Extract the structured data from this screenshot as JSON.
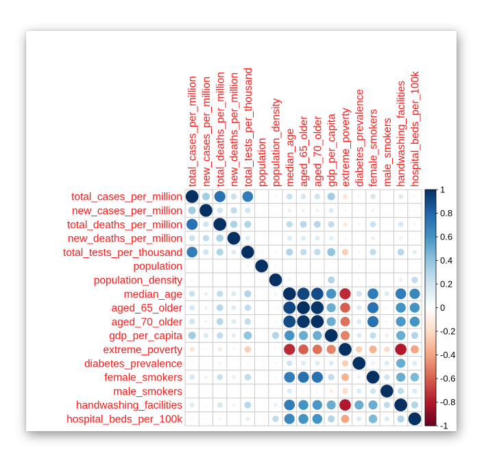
{
  "colors": {
    "label": "#ff1a1a",
    "grid": "#cccccc",
    "scale": [
      "#67001f",
      "#b2182b",
      "#d6604d",
      "#f4a582",
      "#fddbc7",
      "#ffffff",
      "#d1e5f0",
      "#92c5de",
      "#4393c3",
      "#2166ac",
      "#053061"
    ]
  },
  "chart_data": {
    "type": "heatmap",
    "style": "correlation circles",
    "variables": [
      "total_cases_per_million",
      "new_cases_per_million",
      "total_deaths_per_million",
      "new_deaths_per_million",
      "total_tests_per_thousand",
      "population",
      "population_density",
      "median_age",
      "aged_65_older",
      "aged_70_older",
      "gdp_per_capita",
      "extreme_poverty",
      "diabetes_prevalence",
      "female_smokers",
      "male_smokers",
      "handwashing_facilities",
      "hospital_beds_per_100k"
    ],
    "matrix": [
      [
        1.0,
        0.35,
        0.75,
        0.22,
        0.7,
        0.02,
        0.05,
        0.22,
        0.18,
        0.2,
        0.35,
        -0.15,
        0.05,
        0.18,
        0.02,
        0.15,
        0.05
      ],
      [
        0.35,
        1.0,
        0.2,
        0.25,
        0.2,
        0.01,
        0.02,
        0.1,
        0.08,
        0.08,
        0.15,
        -0.05,
        0.03,
        0.08,
        0.02,
        0.05,
        0.03
      ],
      [
        0.75,
        0.2,
        1.0,
        0.32,
        0.3,
        0.02,
        0.03,
        0.25,
        0.28,
        0.28,
        0.25,
        -0.12,
        0.06,
        0.22,
        0.03,
        0.18,
        0.06
      ],
      [
        0.22,
        0.25,
        0.32,
        1.0,
        0.15,
        0.01,
        0.02,
        0.15,
        0.15,
        0.15,
        0.12,
        -0.05,
        0.02,
        0.1,
        0.02,
        0.08,
        0.03
      ],
      [
        0.7,
        0.2,
        0.3,
        0.15,
        1.0,
        -0.05,
        0.05,
        0.3,
        0.25,
        0.25,
        0.4,
        -0.25,
        0.05,
        0.25,
        0.03,
        0.28,
        0.12
      ],
      [
        0.02,
        0.01,
        0.02,
        0.01,
        -0.05,
        1.0,
        0.05,
        0.02,
        0.02,
        0.02,
        0.01,
        0.02,
        0.03,
        0.02,
        0.02,
        0.01,
        0.02
      ],
      [
        0.05,
        0.02,
        0.03,
        0.02,
        0.05,
        0.05,
        1.0,
        0.07,
        0.05,
        0.05,
        0.3,
        -0.05,
        0.05,
        0.05,
        -0.02,
        0.1,
        0.25
      ],
      [
        0.22,
        0.1,
        0.25,
        0.15,
        0.3,
        0.02,
        0.07,
        1.0,
        0.92,
        0.9,
        0.6,
        -0.75,
        0.2,
        0.7,
        0.15,
        0.7,
        0.65
      ],
      [
        0.18,
        0.08,
        0.28,
        0.15,
        0.25,
        0.02,
        0.05,
        0.92,
        1.0,
        0.98,
        0.5,
        -0.6,
        0.15,
        0.75,
        0.05,
        0.6,
        0.6
      ],
      [
        0.2,
        0.08,
        0.28,
        0.15,
        0.25,
        0.02,
        0.05,
        0.9,
        0.98,
        1.0,
        0.5,
        -0.55,
        0.15,
        0.75,
        0.05,
        0.58,
        0.6
      ],
      [
        0.35,
        0.15,
        0.25,
        0.12,
        0.4,
        0.01,
        0.3,
        0.6,
        0.5,
        0.5,
        1.0,
        -0.5,
        0.15,
        0.25,
        -0.1,
        0.5,
        0.3
      ],
      [
        -0.15,
        -0.05,
        -0.12,
        -0.05,
        -0.25,
        0.02,
        -0.05,
        -0.75,
        -0.6,
        -0.55,
        -0.5,
        1.0,
        -0.25,
        -0.35,
        -0.2,
        -0.8,
        -0.4
      ],
      [
        0.05,
        0.03,
        0.06,
        0.02,
        0.05,
        0.03,
        0.05,
        0.2,
        0.15,
        0.15,
        0.15,
        -0.25,
        1.0,
        0.1,
        0.15,
        0.5,
        0.15
      ],
      [
        0.18,
        0.08,
        0.22,
        0.1,
        0.25,
        0.02,
        0.05,
        0.7,
        0.75,
        0.75,
        0.25,
        -0.35,
        0.1,
        1.0,
        0.2,
        0.5,
        0.45
      ],
      [
        0.02,
        0.02,
        0.03,
        0.02,
        0.03,
        0.02,
        -0.02,
        0.15,
        0.05,
        0.05,
        -0.1,
        -0.2,
        0.15,
        0.2,
        1.0,
        0.25,
        0.15
      ],
      [
        0.15,
        0.05,
        0.18,
        0.08,
        0.28,
        0.01,
        0.1,
        0.7,
        0.6,
        0.58,
        0.5,
        -0.8,
        0.5,
        0.5,
        0.25,
        1.0,
        0.3
      ],
      [
        0.05,
        0.03,
        0.06,
        0.03,
        0.12,
        0.02,
        0.25,
        0.65,
        0.6,
        0.6,
        0.3,
        -0.4,
        0.15,
        0.45,
        0.15,
        0.3,
        1.0
      ]
    ],
    "colorbar": {
      "range": [
        -1,
        1
      ],
      "ticks": [
        "1",
        "0.8",
        "0.6",
        "0.4",
        "0.2",
        "0",
        "-0.2",
        "-0.4",
        "-0.6",
        "-0.8",
        "-1"
      ]
    }
  }
}
